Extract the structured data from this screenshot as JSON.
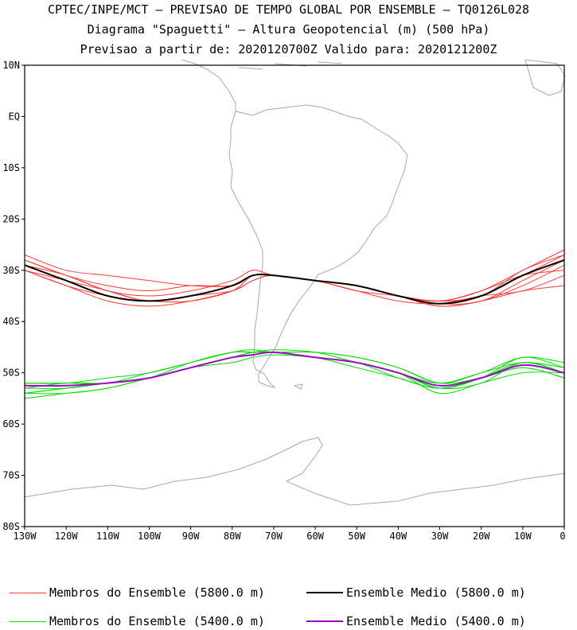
{
  "title": {
    "line1": "CPTEC/INPE/MCT — PREVISAO DE TEMPO GLOBAL POR ENSEMBLE — TQ0126L028",
    "line2": "Diagrama \"Spaguetti\" — Altura Geopotencial (m) (500 hPa)",
    "line3": "Previsao a partir de: 2020120700Z  Valido para: 2020121200Z"
  },
  "axes": {
    "lat_ticks": [
      "10N",
      "EQ",
      "10S",
      "20S",
      "30S",
      "40S",
      "50S",
      "60S",
      "70S",
      "80S"
    ],
    "lon_ticks": [
      "130W",
      "120W",
      "110W",
      "100W",
      "90W",
      "80W",
      "70W",
      "60W",
      "50W",
      "40W",
      "30W",
      "20W",
      "10W",
      "0"
    ]
  },
  "legend": {
    "red_members": "Membros do Ensemble (5800.0 m)",
    "black_mean": "Ensemble Medio (5800.0 m)",
    "green_members": "Membros do Ensemble (5400.0 m)",
    "purple_mean": "Ensemble Medio (5400.0 m)"
  },
  "colors": {
    "red_members": "#ff3b3b",
    "black_mean": "#000000",
    "green_members": "#00dd00",
    "purple_mean": "#a000c8",
    "land": "#a8a8a8"
  },
  "chart_data": {
    "type": "line",
    "xlabel": "",
    "ylabel": "",
    "xlim": [
      -130,
      0
    ],
    "ylim": [
      -80,
      10
    ],
    "x": [
      -130,
      -120,
      -110,
      -100,
      -90,
      -80,
      -75,
      -70,
      -60,
      -50,
      -40,
      -30,
      -20,
      -10,
      0
    ],
    "series": [
      {
        "name": "Ensemble Medio (5800.0 m)",
        "color": "#000000",
        "values": [
          -29,
          -32,
          -35,
          -36,
          -35,
          -33,
          -31,
          -31,
          -32,
          -33,
          -35,
          -36.5,
          -35,
          -31,
          -28
        ]
      },
      {
        "name": "Ensemble Medio (5400.0 m)",
        "color": "#a000c8",
        "values": [
          -52.5,
          -52.5,
          -52,
          -51,
          -49,
          -47,
          -46.5,
          -46,
          -47,
          -48,
          -50,
          -52.5,
          -51,
          -48.5,
          -50
        ]
      }
    ],
    "members_5800": [
      [
        -28,
        -31,
        -34,
        -36,
        -35,
        -33,
        -31,
        -31,
        -32,
        -33,
        -35,
        -36,
        -35,
        -31,
        -27
      ],
      [
        -29,
        -32,
        -35,
        -36,
        -36,
        -34,
        -31,
        -31,
        -32,
        -33,
        -35,
        -36.5,
        -36,
        -32,
        -28
      ],
      [
        -30,
        -33,
        -36,
        -37,
        -36,
        -34,
        -32,
        -31,
        -32,
        -33,
        -35,
        -37,
        -36,
        -33,
        -29
      ],
      [
        -30,
        -33,
        -35,
        -36,
        -35,
        -33,
        -31,
        -31,
        -32,
        -34,
        -36,
        -36.5,
        -35,
        -34,
        -31
      ],
      [
        -27,
        -30,
        -31,
        -32,
        -33,
        -33,
        -31,
        -31,
        -32,
        -33,
        -35,
        -36,
        -34,
        -30,
        -26
      ],
      [
        -29,
        -31,
        -34,
        -35,
        -34,
        -32,
        -30,
        -31,
        -32,
        -33,
        -35,
        -36,
        -35,
        -30,
        -27
      ],
      [
        -30,
        -32,
        -34,
        -36,
        -35,
        -34,
        -32,
        -31,
        -32,
        -33,
        -35,
        -37,
        -36,
        -34,
        -33
      ],
      [
        -28,
        -31,
        -33,
        -34,
        -33,
        -33,
        -31,
        -31,
        -32,
        -34,
        -35,
        -36,
        -34,
        -31,
        -30
      ]
    ],
    "members_5400": [
      [
        -54,
        -54,
        -53,
        -51,
        -49,
        -47,
        -46,
        -46,
        -47,
        -48,
        -50,
        -53,
        -51,
        -48,
        -50
      ],
      [
        -53,
        -53,
        -52,
        -51,
        -49,
        -47,
        -46,
        -46,
        -47,
        -48,
        -50,
        -52,
        -50,
        -48,
        -49
      ],
      [
        -52,
        -52,
        -51,
        -50,
        -48,
        -46,
        -45.5,
        -46,
        -46,
        -47,
        -49,
        -52,
        -50,
        -47,
        -48
      ],
      [
        -55,
        -54,
        -53,
        -51,
        -49,
        -47,
        -46,
        -46,
        -47,
        -49,
        -51,
        -53,
        -51,
        -49,
        -51
      ],
      [
        -54,
        -53,
        -52,
        -51,
        -49,
        -48,
        -47,
        -46.5,
        -47,
        -48,
        -50,
        -53,
        -52,
        -48,
        -50
      ],
      [
        -53,
        -52,
        -52,
        -51,
        -48,
        -46,
        -46,
        -46,
        -46,
        -47,
        -49,
        -52,
        -51,
        -49,
        -51
      ],
      [
        -52,
        -52,
        -52,
        -50,
        -48,
        -46,
        -46,
        -45.5,
        -46,
        -48,
        -50,
        -54,
        -52,
        -50,
        -50
      ],
      [
        -54,
        -53,
        -52,
        -51,
        -49,
        -47,
        -46,
        -46,
        -47,
        -48,
        -51,
        -53,
        -51,
        -47,
        -49
      ]
    ]
  }
}
